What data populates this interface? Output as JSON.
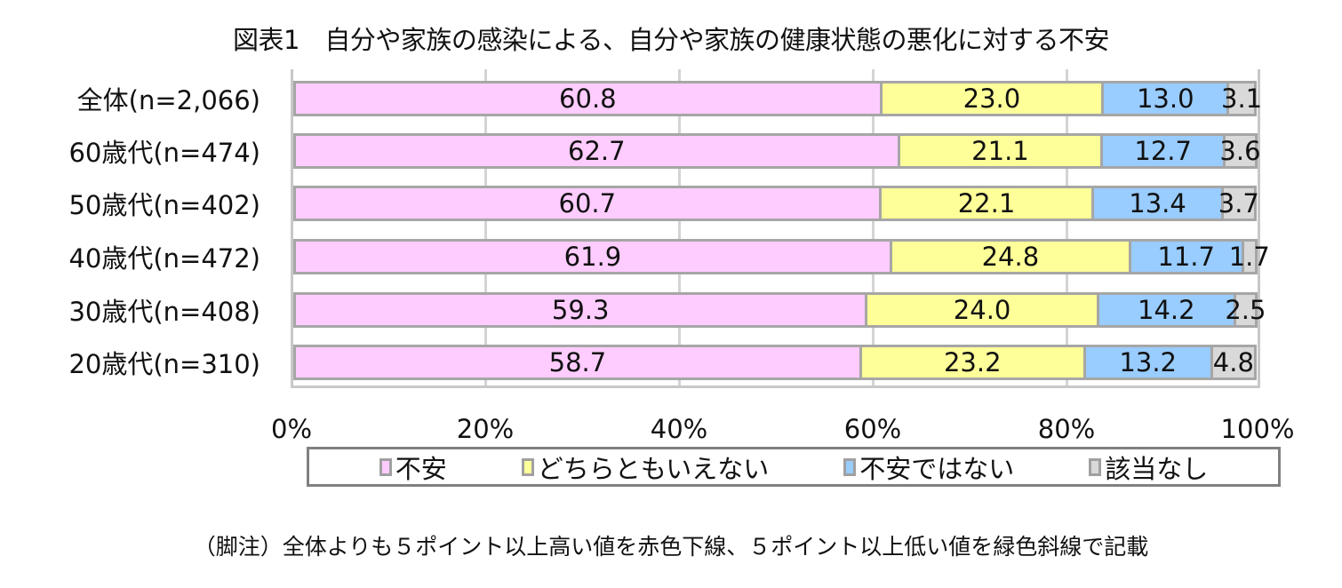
{
  "title": "図表1　自分や家族の感染による、自分や家族の健康状態の悪化に対する不安",
  "footnote": "（脚注）全体よりも５ポイント以上高い値を赤色下線、５ポイント以上低い値を緑色斜線で記載",
  "colors": {
    "anxious": "#ffccff",
    "neutral": "#ffff99",
    "not_anxious": "#99ccff",
    "na": "#d9d9d9",
    "bar_border": "#a6a6a6",
    "grid": "#d4d4d4"
  },
  "x_axis": {
    "ticks": [
      "0%",
      "20%",
      "40%",
      "60%",
      "80%",
      "100%"
    ]
  },
  "legend": [
    "不安",
    "どちらともいえない",
    "不安ではない",
    "該当なし"
  ],
  "categories": [
    "全体(n=2,066)",
    "60歳代(n=474)",
    "50歳代(n=402)",
    "40歳代(n=472)",
    "30歳代(n=408)",
    "20歳代(n=310)"
  ],
  "rows": [
    {
      "label": "全体(n=2,066)",
      "values": [
        "60.8",
        "23.0",
        "13.0",
        "3.1"
      ]
    },
    {
      "label": "60歳代(n=474)",
      "values": [
        "62.7",
        "21.1",
        "12.7",
        "3.6"
      ]
    },
    {
      "label": "50歳代(n=402)",
      "values": [
        "60.7",
        "22.1",
        "13.4",
        "3.7"
      ]
    },
    {
      "label": "40歳代(n=472)",
      "values": [
        "61.9",
        "24.8",
        "11.7",
        "1.7"
      ]
    },
    {
      "label": "30歳代(n=408)",
      "values": [
        "59.3",
        "24.0",
        "14.2",
        "2.5"
      ]
    },
    {
      "label": "20歳代(n=310)",
      "values": [
        "58.7",
        "23.2",
        "13.2",
        "4.8"
      ]
    }
  ],
  "chart_data": {
    "type": "bar",
    "orientation": "horizontal",
    "stacked": true,
    "title": "図表1　自分や家族の感染による、自分や家族の健康状態の悪化に対する不安",
    "xlabel": "",
    "ylabel": "",
    "xlim": [
      0,
      100
    ],
    "x_ticks": [
      "0%",
      "20%",
      "40%",
      "60%",
      "80%",
      "100%"
    ],
    "grid": true,
    "legend_position": "bottom",
    "categories": [
      "全体(n=2,066)",
      "60歳代(n=474)",
      "50歳代(n=402)",
      "40歳代(n=472)",
      "30歳代(n=408)",
      "20歳代(n=310)"
    ],
    "series": [
      {
        "name": "不安",
        "color": "#ffccff",
        "values": [
          60.8,
          62.7,
          60.7,
          61.9,
          59.3,
          58.7
        ]
      },
      {
        "name": "どちらともいえない",
        "color": "#ffff99",
        "values": [
          23.0,
          21.1,
          22.1,
          24.8,
          24.0,
          23.2
        ]
      },
      {
        "name": "不安ではない",
        "color": "#99ccff",
        "values": [
          13.0,
          12.7,
          13.4,
          11.7,
          14.2,
          13.2
        ]
      },
      {
        "name": "該当なし",
        "color": "#d9d9d9",
        "values": [
          3.1,
          3.6,
          3.7,
          1.7,
          2.5,
          4.8
        ]
      }
    ],
    "annotations": [
      "（脚注）全体よりも５ポイント以上高い値を赤色下線、５ポイント以上低い値を緑色斜線で記載"
    ]
  }
}
